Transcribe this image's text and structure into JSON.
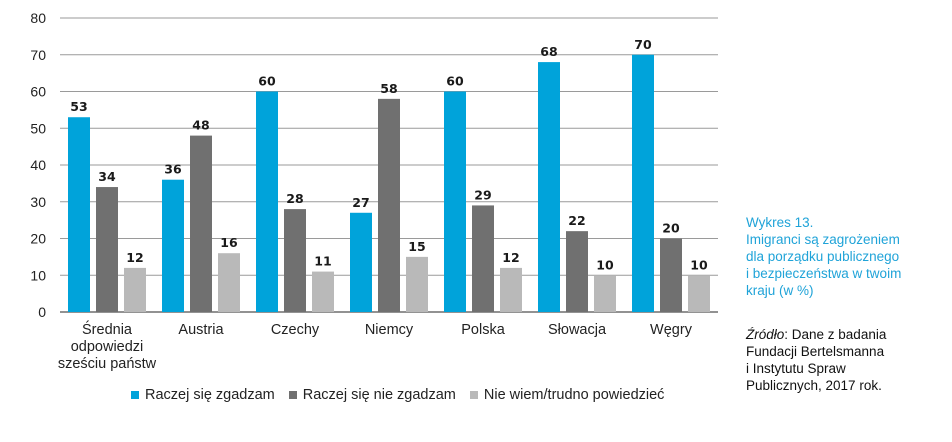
{
  "chart_data": {
    "type": "bar",
    "categories": [
      "Średnia odpowiedzi sześciu państw",
      "Austria",
      "Czechy",
      "Niemcy",
      "Polska",
      "Słowacja",
      "Węgry"
    ],
    "category_lines": [
      [
        "Średnia",
        "odpowiedzi",
        "sześciu państw"
      ],
      [
        "Austria"
      ],
      [
        "Czechy"
      ],
      [
        "Niemcy"
      ],
      [
        "Polska"
      ],
      [
        "Słowacja"
      ],
      [
        "Węgry"
      ]
    ],
    "series": [
      {
        "name": "Raczej się zgadzam",
        "color": "#00a3da",
        "values": [
          53,
          36,
          60,
          27,
          60,
          68,
          70
        ]
      },
      {
        "name": "Raczej się nie zgadzam",
        "color": "#707070",
        "values": [
          34,
          48,
          28,
          58,
          29,
          22,
          20
        ]
      },
      {
        "name": "Nie wiem/trudno powiedzieć",
        "color": "#b9b9b9",
        "values": [
          12,
          16,
          11,
          15,
          12,
          10,
          10
        ]
      }
    ],
    "ylim": [
      0,
      80
    ],
    "yticks": [
      0,
      10,
      20,
      30,
      40,
      50,
      60,
      70,
      80
    ],
    "grid": true,
    "legend_position": "bottom"
  },
  "caption": {
    "lines": [
      "Wykres 13.",
      "Imigranci są zagrożeniem",
      "dla porządku publicznego",
      "i bezpieczeństwa w twoim",
      "kraju (w %)"
    ]
  },
  "source": {
    "label": "Źródło",
    "lines_first_rest": ": Dane z badania",
    "lines": [
      "Fundacji Bertelsmanna",
      "i Instytutu Spraw",
      "Publicznych, 2017 rok."
    ]
  }
}
